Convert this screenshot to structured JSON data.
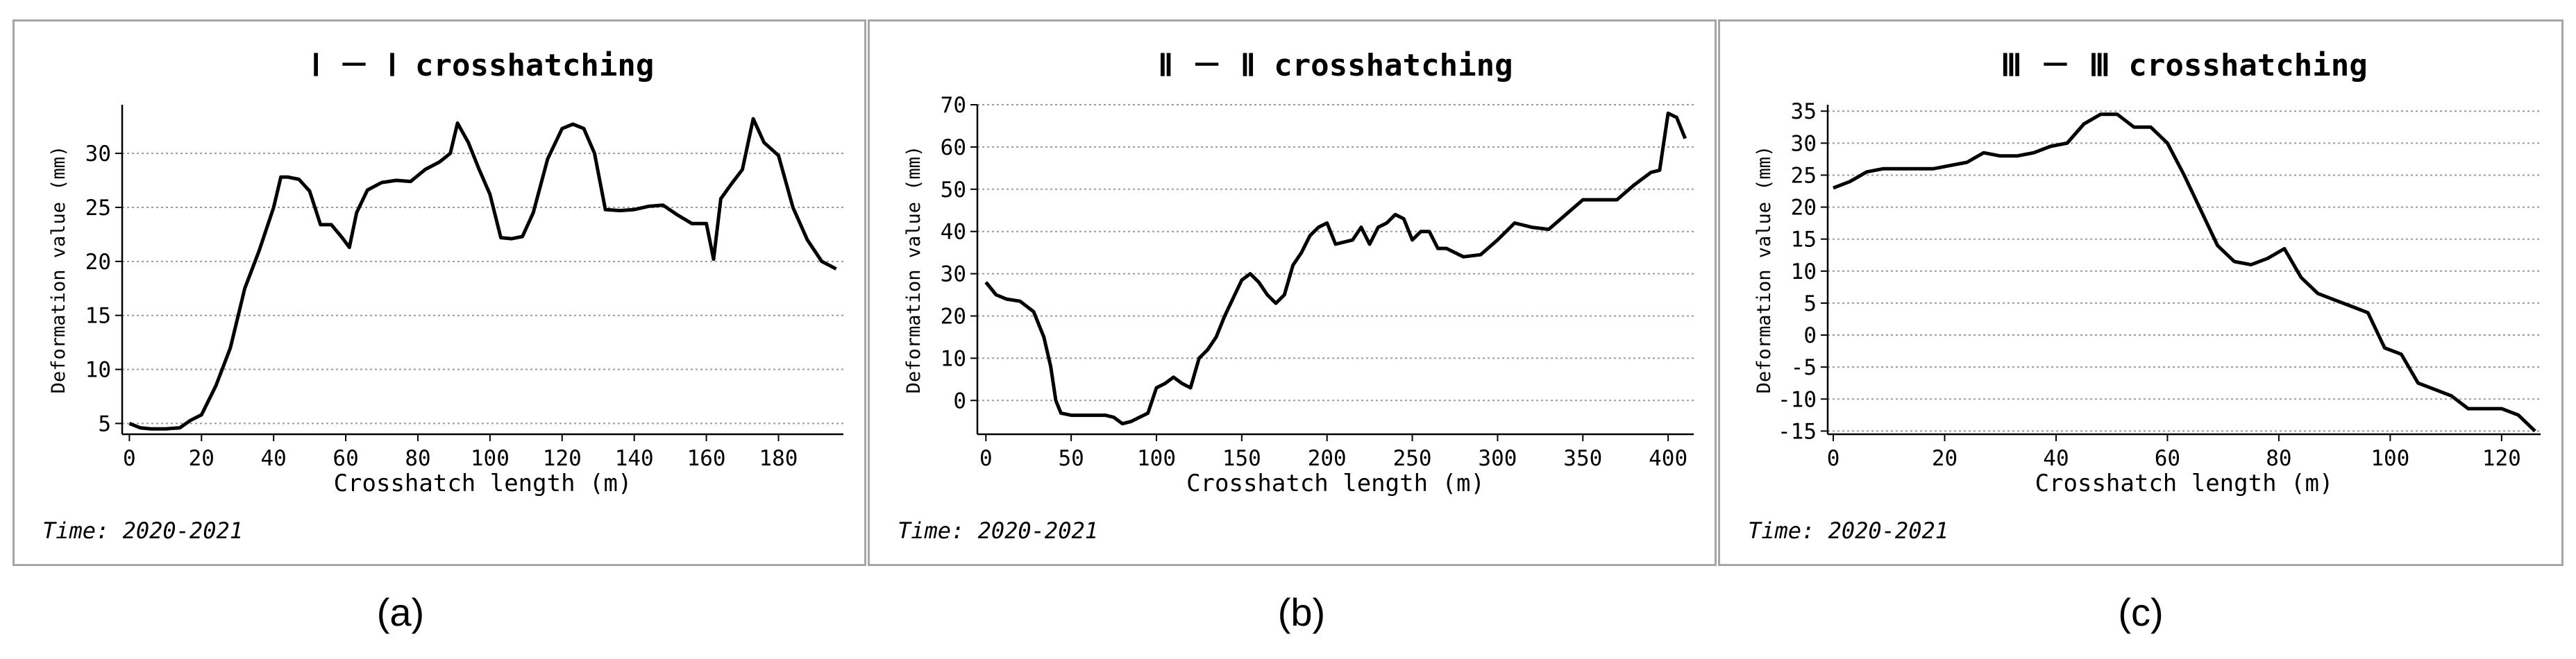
{
  "chart_data": [
    {
      "type": "line",
      "title": "Ⅰ － Ⅰ crosshatching",
      "xlabel": "Crosshatch length (m)",
      "ylabel": "Deformation value (mm)",
      "xlim": [
        -2,
        198
      ],
      "ylim": [
        4,
        34.5
      ],
      "xticks": [
        0,
        20,
        40,
        60,
        80,
        100,
        120,
        140,
        160,
        180
      ],
      "yticks": [
        5,
        10,
        15,
        20,
        25,
        30
      ],
      "grid": "horizontal-dotted",
      "time": "Time: 2020-2021",
      "caption": "(a)",
      "x": [
        0,
        3,
        6,
        10,
        14,
        17,
        20,
        24,
        28,
        32,
        36,
        40,
        42,
        44,
        47,
        50,
        53,
        56,
        59,
        61,
        63,
        66,
        70,
        74,
        78,
        82,
        86,
        89,
        91,
        94,
        97,
        100,
        103,
        106,
        109,
        112,
        116,
        120,
        123,
        126,
        129,
        132,
        136,
        140,
        144,
        148,
        152,
        156,
        160,
        162,
        164,
        167,
        170,
        173,
        176,
        180,
        184,
        188,
        192,
        196
      ],
      "y": [
        5,
        4.6,
        4.5,
        4.5,
        4.6,
        5.3,
        5.8,
        8.5,
        12,
        17.5,
        21,
        25,
        27.8,
        27.8,
        27.6,
        26.5,
        23.4,
        23.4,
        22.2,
        21.3,
        24.5,
        26.6,
        27.3,
        27.5,
        27.4,
        28.5,
        29.2,
        30,
        32.8,
        31,
        28.5,
        26.2,
        22.2,
        22.1,
        22.3,
        24.5,
        29.5,
        32.3,
        32.7,
        32.3,
        30,
        24.8,
        24.7,
        24.8,
        25.1,
        25.2,
        24.3,
        23.5,
        23.5,
        20.2,
        25.8,
        27.2,
        28.5,
        33.2,
        31,
        29.8,
        25,
        22,
        20,
        19.3
      ]
    },
    {
      "type": "line",
      "title": "Ⅱ － Ⅱ crosshatching",
      "xlabel": "Crosshatch length (m)",
      "ylabel": "Deformation value (mm)",
      "xlim": [
        -5,
        415
      ],
      "ylim": [
        -8,
        70
      ],
      "xticks": [
        0,
        50,
        100,
        150,
        200,
        250,
        300,
        350,
        400
      ],
      "yticks": [
        0,
        10,
        20,
        30,
        40,
        50,
        60,
        70
      ],
      "grid": "horizontal-dotted",
      "time": "Time: 2020-2021",
      "caption": "(b)",
      "x": [
        0,
        6,
        12,
        20,
        28,
        34,
        38,
        41,
        44,
        50,
        60,
        70,
        75,
        80,
        85,
        90,
        95,
        100,
        105,
        110,
        115,
        120,
        125,
        130,
        135,
        140,
        150,
        155,
        160,
        165,
        170,
        175,
        180,
        185,
        190,
        195,
        200,
        205,
        210,
        215,
        220,
        225,
        230,
        235,
        240,
        245,
        250,
        255,
        260,
        265,
        270,
        280,
        290,
        300,
        310,
        320,
        330,
        340,
        350,
        360,
        370,
        380,
        390,
        395,
        400,
        405,
        410
      ],
      "y": [
        28,
        25,
        24,
        23.5,
        21,
        15,
        8,
        0,
        -3,
        -3.5,
        -3.5,
        -3.5,
        -4,
        -5.5,
        -5,
        -4,
        -3,
        3,
        4,
        5.5,
        4,
        3,
        10,
        12,
        15,
        20,
        28.5,
        30,
        28,
        25,
        23,
        25,
        32,
        35,
        39,
        41,
        42,
        37,
        37.5,
        38,
        41,
        37,
        41,
        42,
        44,
        43,
        38,
        40,
        40,
        36,
        36,
        34,
        34.5,
        38,
        42,
        41,
        40.5,
        44,
        47.5,
        47.5,
        47.5,
        51,
        54,
        54.5,
        68,
        67,
        62
      ]
    },
    {
      "type": "line",
      "title": "Ⅲ － Ⅲ crosshatching",
      "xlabel": "Crosshatch length (m)",
      "ylabel": "Deformation value (mm)",
      "xlim": [
        -1,
        127
      ],
      "ylim": [
        -15.5,
        36
      ],
      "xticks": [
        0,
        20,
        40,
        60,
        80,
        100,
        120
      ],
      "yticks": [
        -15,
        -10,
        -5,
        0,
        5,
        10,
        15,
        20,
        25,
        30,
        35
      ],
      "grid": "horizontal-dotted",
      "time": "Time: 2020-2021",
      "caption": "(c)",
      "x": [
        0,
        3,
        6,
        9,
        12,
        15,
        18,
        21,
        24,
        27,
        30,
        33,
        36,
        39,
        42,
        45,
        48,
        51,
        54,
        57,
        60,
        63,
        66,
        69,
        72,
        75,
        78,
        81,
        84,
        87,
        90,
        93,
        96,
        99,
        102,
        105,
        108,
        111,
        114,
        117,
        120,
        123,
        126
      ],
      "y": [
        23,
        24,
        25.5,
        26,
        26,
        26,
        26,
        26.5,
        27,
        28.5,
        28,
        28,
        28.5,
        29.5,
        30,
        33,
        34.5,
        34.5,
        32.5,
        32.5,
        30,
        25,
        19.5,
        14,
        11.5,
        11,
        12,
        13.5,
        9,
        6.5,
        5.5,
        4.5,
        3.5,
        -2,
        -3,
        -7.5,
        -8.5,
        -9.5,
        -11.5,
        -11.5,
        -11.5,
        -12.5,
        -15
      ]
    }
  ]
}
